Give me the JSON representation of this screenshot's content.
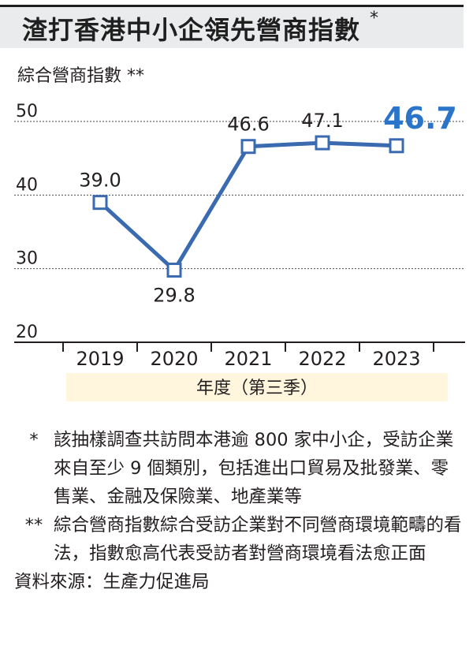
{
  "title": "渣打香港中小企領先營商指數",
  "title_mark": "*",
  "colors": {
    "line": "#3a6ab0",
    "highlight": "#2a74c9",
    "band": "#fff6dd",
    "grid": "#4a4a4a",
    "title_bg": "#e9ebec"
  },
  "chart_data": {
    "type": "line",
    "ylabel": "綜合營商指數 **",
    "xlabel": "年度（第三季）",
    "categories": [
      "2019",
      "2020",
      "2021",
      "2022",
      "2023"
    ],
    "values": [
      39.0,
      29.8,
      46.6,
      47.1,
      46.7
    ],
    "value_labels": [
      "39.0",
      "29.8",
      "46.6",
      "47.1",
      "46.7"
    ],
    "highlight_last": true,
    "ylim": [
      20,
      50
    ],
    "yticks": [
      "20",
      "30",
      "40",
      "50"
    ],
    "grid": "dashed horizontal"
  },
  "notes": [
    {
      "mark": "*",
      "text": "該抽樣調查共訪問本港逾 800 家中小企，受訪企業來自至少 9 個類別，包括進出口貿易及批發業、零售業、金融及保險業、地產業等"
    },
    {
      "mark": "**",
      "text": "綜合營商指數綜合受訪企業對不同營商環境範疇的看法，指數愈高代表受訪者對營商環境看法愈正面"
    }
  ],
  "source": "資料來源：生產力促進局"
}
